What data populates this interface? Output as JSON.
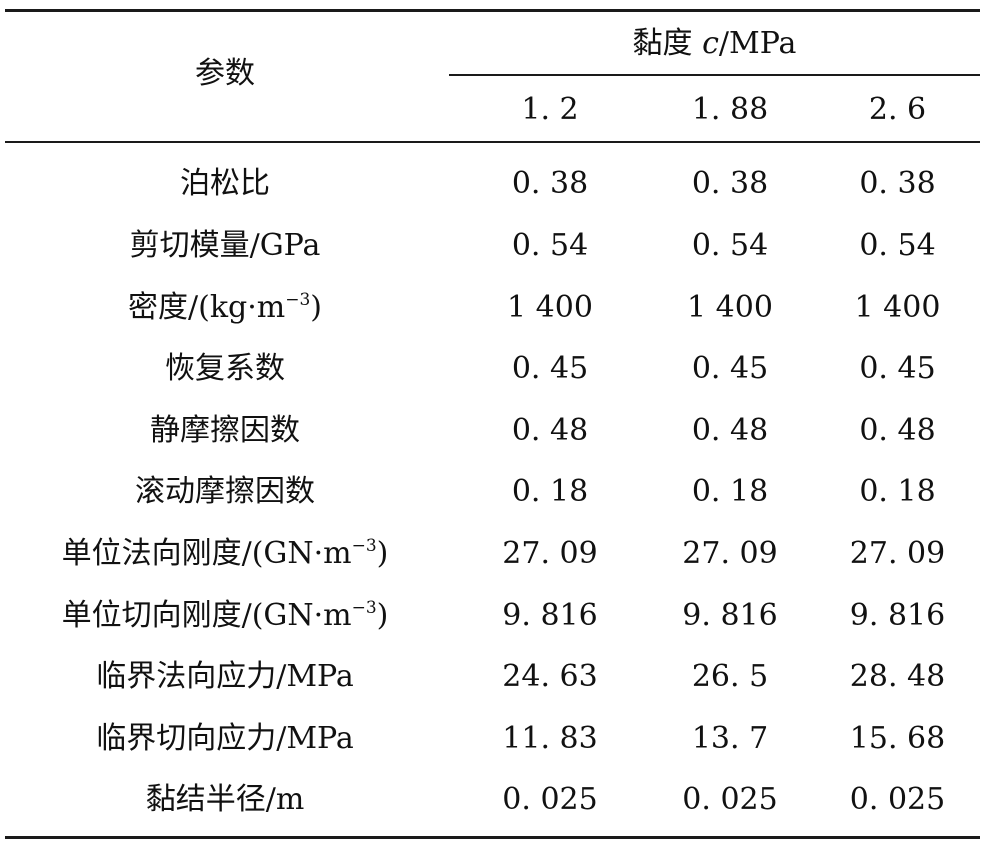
{
  "table": {
    "param_header": "参数",
    "group_header": {
      "prefix": "黏度 ",
      "symbol": "c",
      "suffix": "/MPa"
    },
    "columns": [
      "1. 2",
      "1. 88",
      "2. 6"
    ],
    "rows": [
      {
        "param": "泊松比",
        "sup": "",
        "tail": "",
        "values": [
          "0. 38",
          "0. 38",
          "0. 38"
        ]
      },
      {
        "param": "剪切模量/GPa",
        "sup": "",
        "tail": "",
        "values": [
          "0. 54",
          "0. 54",
          "0. 54"
        ]
      },
      {
        "param": "密度/(kg·m",
        "sup": "−3",
        "tail": ")",
        "values": [
          "1 400",
          "1 400",
          "1 400"
        ]
      },
      {
        "param": "恢复系数",
        "sup": "",
        "tail": "",
        "values": [
          "0. 45",
          "0. 45",
          "0. 45"
        ]
      },
      {
        "param": "静摩擦因数",
        "sup": "",
        "tail": "",
        "values": [
          "0. 48",
          "0. 48",
          "0. 48"
        ]
      },
      {
        "param": "滚动摩擦因数",
        "sup": "",
        "tail": "",
        "values": [
          "0. 18",
          "0. 18",
          "0. 18"
        ]
      },
      {
        "param": "单位法向刚度/(GN·m",
        "sup": "−3",
        "tail": ")",
        "values": [
          "27. 09",
          "27. 09",
          "27. 09"
        ]
      },
      {
        "param": "单位切向刚度/(GN·m",
        "sup": "−3",
        "tail": ")",
        "values": [
          "9. 816",
          "9. 816",
          "9. 816"
        ]
      },
      {
        "param": "临界法向应力/MPa",
        "sup": "",
        "tail": "",
        "values": [
          "24. 63",
          "26. 5",
          "28. 48"
        ]
      },
      {
        "param": "临界切向应力/MPa",
        "sup": "",
        "tail": "",
        "values": [
          "11. 83",
          "13. 7",
          "15. 68"
        ]
      },
      {
        "param": "黏结半径/m",
        "sup": "",
        "tail": "",
        "values": [
          "0. 025",
          "0. 025",
          "0. 025"
        ]
      }
    ]
  }
}
